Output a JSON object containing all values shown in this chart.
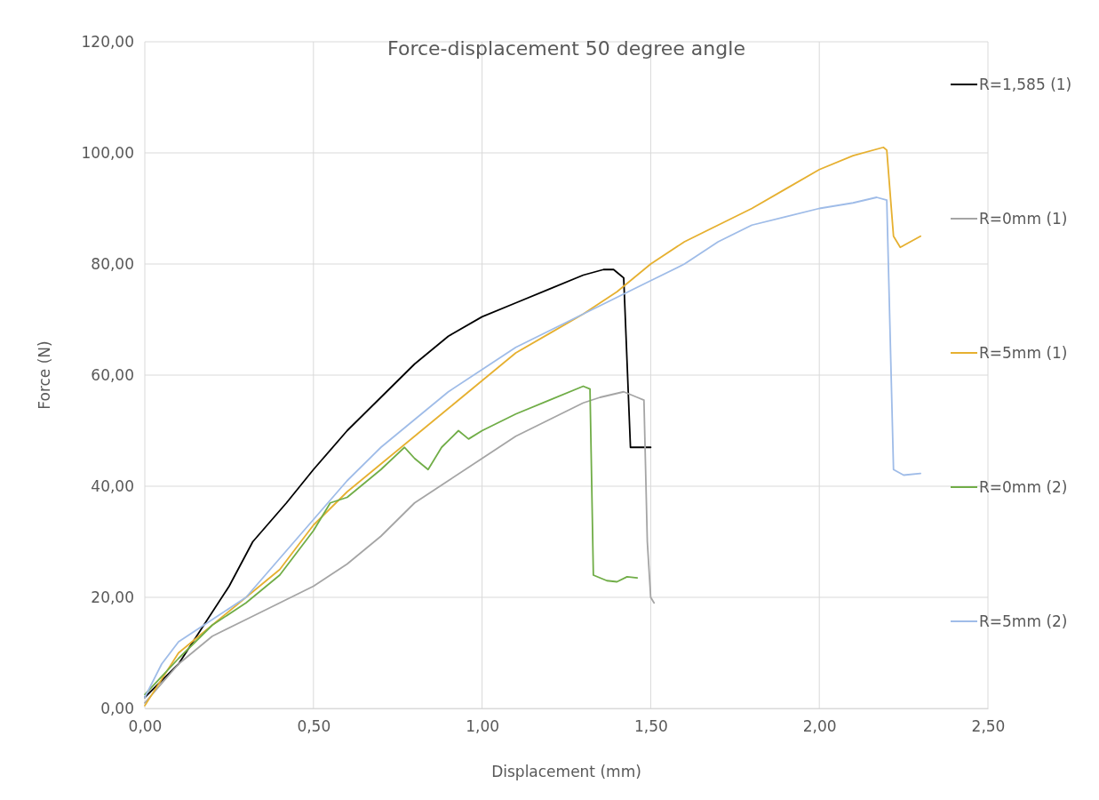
{
  "chart_data": {
    "type": "line",
    "title": "Force-displacement 50 degree angle",
    "xlabel": "Displacement (mm)",
    "ylabel": "Force (N)",
    "xlim": [
      0,
      2.5
    ],
    "ylim": [
      0,
      120
    ],
    "xticks": [
      {
        "value": 0,
        "label": "0,00"
      },
      {
        "value": 0.5,
        "label": "0,50"
      },
      {
        "value": 1,
        "label": "1,00"
      },
      {
        "value": 1.5,
        "label": "1,50"
      },
      {
        "value": 2,
        "label": "2,00"
      },
      {
        "value": 2.5,
        "label": "2,50"
      }
    ],
    "yticks": [
      {
        "value": 0,
        "label": "0,00"
      },
      {
        "value": 20,
        "label": "20,00"
      },
      {
        "value": 40,
        "label": "40,00"
      },
      {
        "value": 60,
        "label": "60,00"
      },
      {
        "value": 80,
        "label": "80,00"
      },
      {
        "value": 100,
        "label": "100,00"
      },
      {
        "value": 120,
        "label": "120,00"
      }
    ],
    "grid": true,
    "legend": "right",
    "marker": "none",
    "line_style": "solid",
    "series": [
      {
        "name": "R=1,585 (1)",
        "color": "#000000",
        "x": [
          0,
          0.1,
          0.25,
          0.32,
          0.42,
          0.5,
          0.6,
          0.7,
          0.8,
          0.9,
          1.0,
          1.1,
          1.2,
          1.3,
          1.36,
          1.39,
          1.41,
          1.42,
          1.44,
          1.47,
          1.5
        ],
        "values": [
          2,
          8,
          22,
          30,
          37,
          43,
          50,
          56,
          62,
          67,
          70.5,
          73,
          75.5,
          78,
          79,
          79,
          78,
          77.5,
          47,
          47,
          47
        ]
      },
      {
        "name": "R=0mm (1)",
        "color": "#a5a5a5",
        "x": [
          0,
          0.1,
          0.2,
          0.3,
          0.4,
          0.5,
          0.6,
          0.7,
          0.8,
          0.9,
          1.0,
          1.1,
          1.2,
          1.3,
          1.35,
          1.42,
          1.46,
          1.48,
          1.49,
          1.5,
          1.51
        ],
        "values": [
          1,
          8,
          13,
          16,
          19,
          22,
          26,
          31,
          37,
          41,
          45,
          49,
          52,
          55,
          56,
          57,
          56,
          55.5,
          30,
          20,
          19
        ]
      },
      {
        "name": "R=5mm (1)",
        "color": "#e6b030",
        "x": [
          0,
          0.1,
          0.2,
          0.3,
          0.4,
          0.5,
          0.6,
          0.7,
          0.8,
          0.9,
          1.0,
          1.1,
          1.2,
          1.3,
          1.4,
          1.5,
          1.6,
          1.7,
          1.8,
          1.9,
          2.0,
          2.1,
          2.19,
          2.2,
          2.22,
          2.24,
          2.27,
          2.3
        ],
        "values": [
          0.5,
          10,
          15,
          20,
          25,
          33,
          39,
          44,
          49,
          54,
          59,
          64,
          67.5,
          71,
          75,
          80,
          84,
          87,
          90,
          93.5,
          97,
          99.5,
          101,
          100.5,
          85,
          83,
          84,
          85
        ]
      },
      {
        "name": "R=0mm (2)",
        "color": "#70ad47",
        "x": [
          0,
          0.1,
          0.2,
          0.3,
          0.4,
          0.5,
          0.55,
          0.6,
          0.7,
          0.77,
          0.8,
          0.84,
          0.88,
          0.93,
          0.96,
          1.0,
          1.1,
          1.2,
          1.3,
          1.32,
          1.33,
          1.37,
          1.4,
          1.43,
          1.46
        ],
        "values": [
          2.5,
          9,
          15,
          19,
          24,
          32,
          37,
          38,
          43,
          47,
          45,
          43,
          47,
          50,
          48.5,
          50,
          53,
          55.5,
          58,
          57.5,
          24,
          23,
          22.8,
          23.7,
          23.5
        ]
      },
      {
        "name": "R=5mm (2)",
        "color": "#9fbce8",
        "x": [
          0,
          0.05,
          0.1,
          0.2,
          0.3,
          0.4,
          0.5,
          0.6,
          0.7,
          0.8,
          0.9,
          1.0,
          1.1,
          1.2,
          1.3,
          1.4,
          1.5,
          1.6,
          1.7,
          1.8,
          1.9,
          2.0,
          2.1,
          2.17,
          2.2,
          2.22,
          2.25,
          2.3
        ],
        "values": [
          2,
          8,
          12,
          16,
          20,
          27,
          34,
          41,
          47,
          52,
          57,
          61,
          65,
          68,
          71,
          74,
          77,
          80,
          84,
          87,
          88.5,
          90,
          91,
          92,
          91.5,
          43,
          42,
          42.3
        ]
      }
    ]
  }
}
